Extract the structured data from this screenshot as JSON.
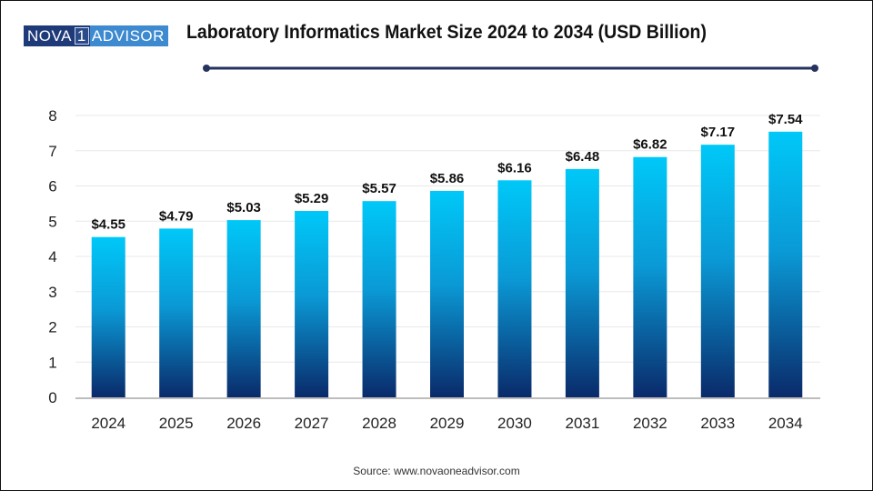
{
  "logo": {
    "part1": "NOVA",
    "part2": "1",
    "part3": "ADVISOR"
  },
  "header": {
    "title": "Laboratory Informatics Market Size 2024 to 2034 (USD Billion)"
  },
  "footer": {
    "source": "Source: www.novaoneadvisor.com"
  },
  "colors": {
    "bar_top": "#00c8f8",
    "bar_bottom": "#0a2a6a",
    "rule": "#26335f",
    "grid": "#e8e8e8",
    "axis": "#bdbdbd"
  },
  "chart_data": {
    "type": "bar",
    "title": "Laboratory Informatics Market Size 2024 to 2034 (USD Billion)",
    "xlabel": "",
    "ylabel": "",
    "categories": [
      "2024",
      "2025",
      "2026",
      "2027",
      "2028",
      "2029",
      "2030",
      "2031",
      "2032",
      "2033",
      "2034"
    ],
    "values": [
      4.55,
      4.79,
      5.03,
      5.29,
      5.57,
      5.86,
      6.16,
      6.48,
      6.82,
      7.17,
      7.54
    ],
    "data_labels": [
      "$4.55",
      "$4.79",
      "$5.03",
      "$5.29",
      "$5.57",
      "$5.86",
      "$6.16",
      "$6.48",
      "$6.82",
      "$7.17",
      "$7.54"
    ],
    "ylim": [
      0,
      8
    ],
    "yticks": [
      "0",
      "1",
      "2",
      "3",
      "4",
      "5",
      "6",
      "7",
      "8"
    ],
    "grid": true,
    "legend": "none"
  }
}
